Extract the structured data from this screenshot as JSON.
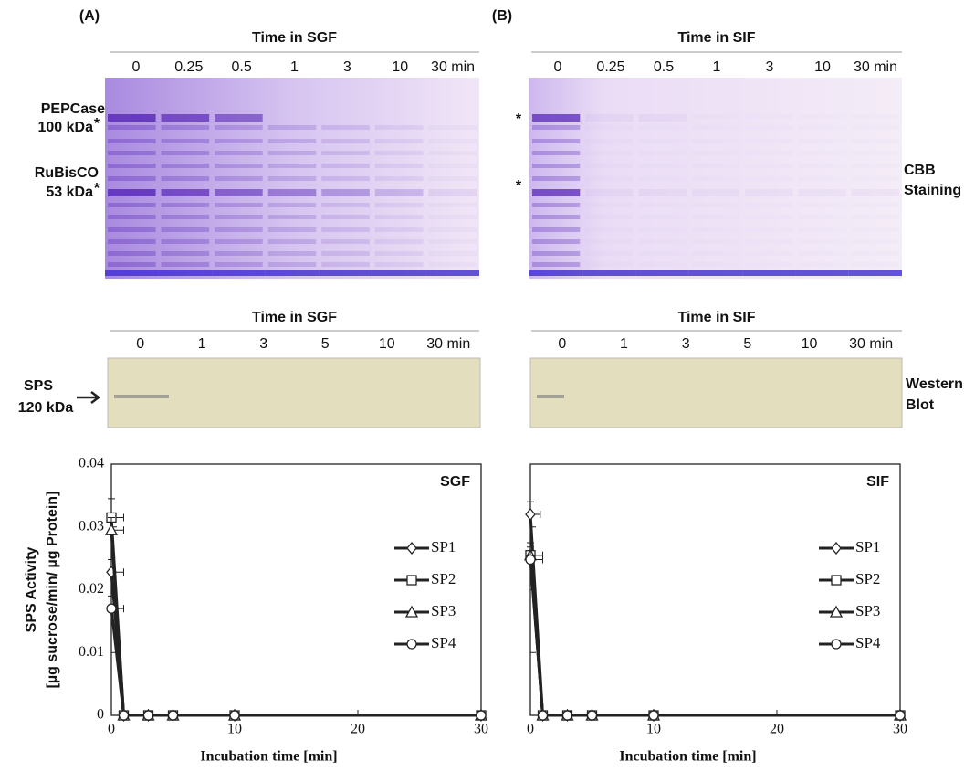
{
  "panels": [
    {
      "label": "(A)",
      "cbb_title": "Time in SGF",
      "cbb_lanes": [
        "0",
        "0.25",
        "0.5",
        "1",
        "3",
        "10",
        "30 min"
      ],
      "wb_title": "Time in SGF",
      "wb_lanes": [
        "0",
        "1",
        "3",
        "5",
        "10",
        "30 min"
      ]
    },
    {
      "label": "(B)",
      "cbb_title": "Time in SIF",
      "cbb_lanes": [
        "0",
        "0.25",
        "0.5",
        "1",
        "3",
        "10",
        "30 min"
      ],
      "wb_title": "Time in SIF",
      "wb_lanes": [
        "0",
        "1",
        "3",
        "5",
        "10",
        "30 min"
      ]
    }
  ],
  "gel": {
    "pepcase": "PEPCase",
    "pepcase_kda": "100 kDa",
    "rubisco": "RuBisCO",
    "rubisco_kda": "53 kDa",
    "star": "*",
    "cbb": "CBB",
    "staining": "Staining",
    "sps": "SPS",
    "sps_kda": "120 kDa",
    "western": "Western",
    "blot": "Blot"
  },
  "chart_data": [
    {
      "type": "line",
      "title": "SGF",
      "xlabel": "Incubation time [min]",
      "ylabel": "SPS Activity",
      "ylabel_units": "[µg sucrose/min/ µg Protein]",
      "x": [
        0,
        1,
        3,
        5,
        10,
        30
      ],
      "xlim": [
        0,
        30
      ],
      "xticks": [
        0,
        10,
        20,
        30
      ],
      "ylim": [
        0,
        0.04
      ],
      "yticks": [
        0,
        0.01,
        0.02,
        0.03,
        0.04
      ],
      "ytick_labels": true,
      "series": [
        {
          "name": "SP1",
          "marker": "diamond",
          "color": "#222",
          "values": [
            0.0228,
            0,
            0,
            0,
            0,
            0
          ],
          "errors": [
            0.002,
            0,
            0,
            0,
            0,
            0
          ],
          "xerrors": [
            1,
            0,
            0,
            0,
            0,
            0
          ]
        },
        {
          "name": "SP2",
          "marker": "square",
          "color": "#222",
          "values": [
            0.0315,
            0,
            0,
            0,
            0,
            0
          ],
          "errors": [
            0.003,
            0,
            0,
            0,
            0,
            0
          ],
          "xerrors": [
            1,
            0,
            0,
            0,
            0,
            0
          ]
        },
        {
          "name": "SP3",
          "marker": "triangle",
          "color": "#222",
          "values": [
            0.0295,
            0,
            0,
            0,
            0,
            0
          ],
          "errors": [
            0.002,
            0,
            0,
            0,
            0,
            0
          ],
          "xerrors": [
            1,
            0,
            0,
            0,
            0,
            0
          ]
        },
        {
          "name": "SP4",
          "marker": "circle",
          "color": "#222",
          "values": [
            0.017,
            0,
            0,
            0,
            0,
            0
          ],
          "errors": [
            0.002,
            0,
            0,
            0,
            0,
            0
          ],
          "xerrors": [
            1,
            0,
            0,
            0,
            0,
            0
          ]
        }
      ]
    },
    {
      "type": "line",
      "title": "SIF",
      "xlabel": "Incubation time [min]",
      "x": [
        0,
        1,
        3,
        5,
        10,
        30
      ],
      "xlim": [
        0,
        30
      ],
      "xticks": [
        0,
        10,
        20,
        30
      ],
      "ylim": [
        0,
        0.04
      ],
      "yticks": [
        0,
        0.01,
        0.02,
        0.03,
        0.04
      ],
      "ytick_labels": false,
      "series": [
        {
          "name": "SP1",
          "marker": "diamond",
          "color": "#222",
          "values": [
            0.032,
            0,
            0,
            0,
            0,
            0
          ],
          "errors": [
            0.002,
            0,
            0,
            0,
            0,
            0
          ],
          "xerrors": [
            0.8,
            0,
            0,
            0,
            0,
            0
          ]
        },
        {
          "name": "SP2",
          "marker": "square",
          "color": "#222",
          "values": [
            0.0255,
            0,
            0,
            0,
            0,
            0
          ],
          "errors": [
            0.002,
            0,
            0,
            0,
            0,
            0
          ],
          "xerrors": [
            1,
            0,
            0,
            0,
            0,
            0
          ]
        },
        {
          "name": "SP3",
          "marker": "triangle",
          "color": "#222",
          "values": [
            0.0255,
            0,
            0,
            0,
            0,
            0
          ],
          "errors": [
            0.002,
            0,
            0,
            0,
            0,
            0
          ],
          "xerrors": [
            1,
            0,
            0,
            0,
            0,
            0
          ]
        },
        {
          "name": "SP4",
          "marker": "circle",
          "color": "#222",
          "values": [
            0.0248,
            0,
            0,
            0,
            0,
            0
          ],
          "errors": [
            0.002,
            0,
            0,
            0,
            0,
            0
          ],
          "xerrors": [
            1,
            0,
            0,
            0,
            0,
            0
          ]
        }
      ]
    }
  ]
}
